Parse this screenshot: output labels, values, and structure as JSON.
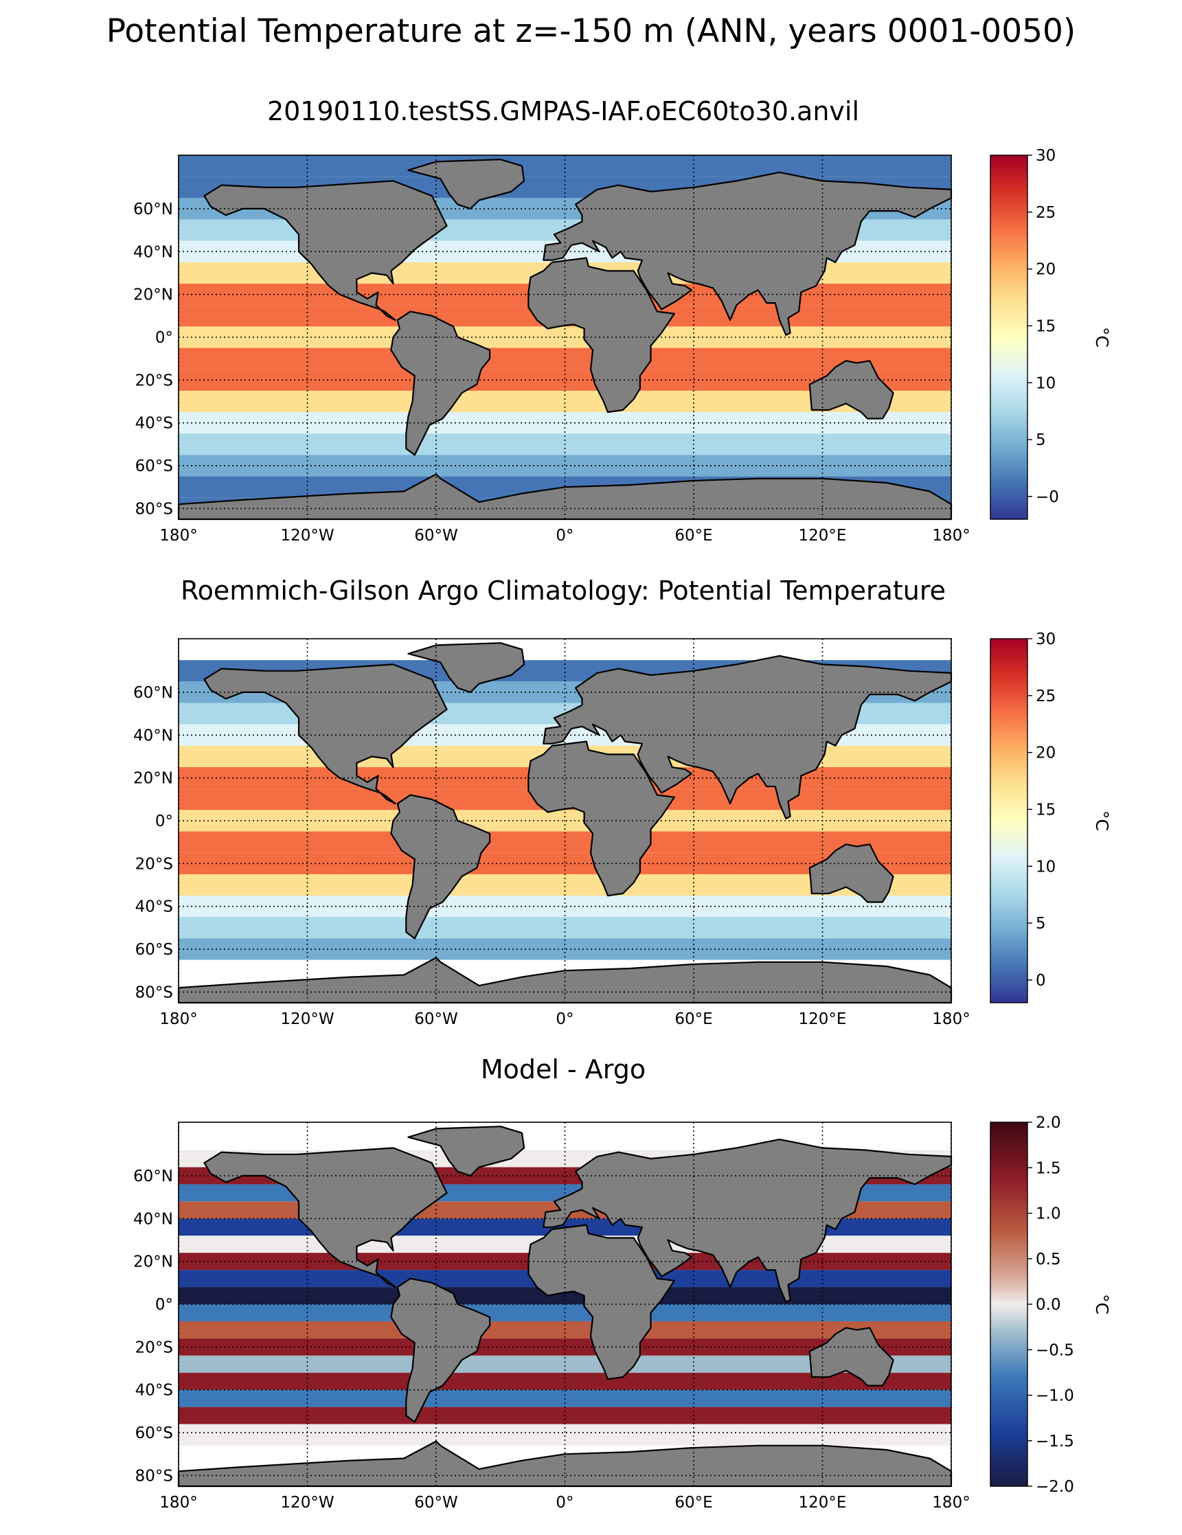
{
  "suptitle": "Potential Temperature at z=-150 m (ANN, years 0001-0050)",
  "panels": [
    {
      "title": "20190110.testSS.GMPAS-IAF.oEC60to30.anvil",
      "colormap": "RdYlBu_r",
      "colorbar": {
        "label": "°C",
        "ticks": [
          "−0",
          "5",
          "10",
          "15",
          "20",
          "25",
          "30"
        ],
        "tick_values": [
          0,
          5,
          10,
          15,
          20,
          25,
          30
        ],
        "range": [
          -2,
          30
        ]
      }
    },
    {
      "title": "Roemmich-Gilson Argo Climatology: Potential Temperature",
      "colormap": "RdYlBu_r",
      "colorbar": {
        "label": "°C",
        "ticks": [
          "0",
          "5",
          "10",
          "15",
          "20",
          "25",
          "30"
        ],
        "tick_values": [
          0,
          5,
          10,
          15,
          20,
          25,
          30
        ],
        "range": [
          -2,
          30
        ]
      }
    },
    {
      "title": "Model - Argo",
      "colormap": "balance",
      "colorbar": {
        "label": "°C",
        "ticks": [
          "−2.0",
          "−1.5",
          "−1.0",
          "−0.5",
          "0.0",
          "0.5",
          "1.0",
          "1.5",
          "2.0"
        ],
        "tick_values": [
          -2,
          -1.5,
          -1,
          -0.5,
          0,
          0.5,
          1,
          1.5,
          2
        ],
        "range": [
          -2,
          2
        ]
      }
    }
  ],
  "axes": {
    "lon_ticks": [
      "180°",
      "120°W",
      "60°W",
      "0°",
      "60°E",
      "120°E",
      "180°"
    ],
    "lon_values": [
      -180,
      -120,
      -60,
      0,
      60,
      120,
      180
    ],
    "lat_ticks": [
      "60°N",
      "40°N",
      "20°N",
      "0°",
      "20°S",
      "40°S",
      "60°S",
      "80°S"
    ],
    "lat_values": [
      60,
      40,
      20,
      0,
      -20,
      -40,
      -60,
      -80
    ],
    "lat_range": [
      -85,
      85
    ],
    "lon_range": [
      -180,
      180
    ]
  },
  "colors": {
    "land": "#808080",
    "missing": "#ffffff",
    "grid": "#000000"
  }
}
